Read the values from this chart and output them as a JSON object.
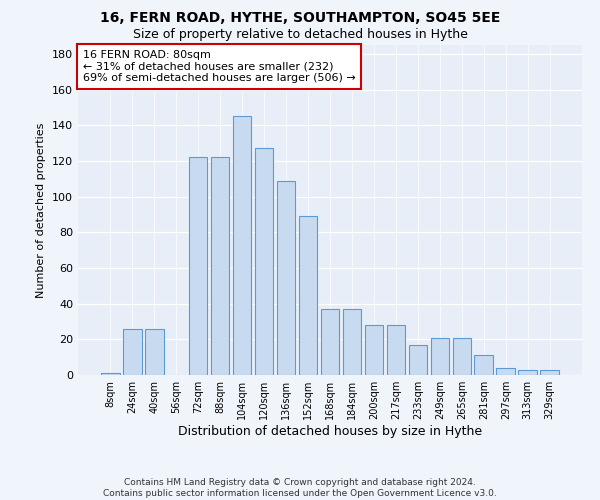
{
  "title": "16, FERN ROAD, HYTHE, SOUTHAMPTON, SO45 5EE",
  "subtitle": "Size of property relative to detached houses in Hythe",
  "xlabel": "Distribution of detached houses by size in Hythe",
  "ylabel": "Number of detached properties",
  "categories": [
    "8sqm",
    "24sqm",
    "40sqm",
    "56sqm",
    "72sqm",
    "88sqm",
    "104sqm",
    "120sqm",
    "136sqm",
    "152sqm",
    "168sqm",
    "184sqm",
    "200sqm",
    "217sqm",
    "233sqm",
    "249sqm",
    "265sqm",
    "281sqm",
    "297sqm",
    "313sqm",
    "329sqm"
  ],
  "heights": [
    1,
    26,
    26,
    0,
    122,
    122,
    145,
    127,
    109,
    89,
    37,
    37,
    28,
    28,
    17,
    21,
    21,
    11,
    4,
    3,
    3
  ],
  "bar_color": "#c8daef",
  "bar_edge_color": "#5b9bd5",
  "annotation_line1": "16 FERN ROAD: 80sqm",
  "annotation_line2": "← 31% of detached houses are smaller (232)",
  "annotation_line3": "69% of semi-detached houses are larger (506) →",
  "annotation_border_color": "#cc0000",
  "ylim": [
    0,
    185
  ],
  "yticks": [
    0,
    20,
    40,
    60,
    80,
    100,
    120,
    140,
    160,
    180
  ],
  "bg_color": "#f0f4fb",
  "plot_bg_color": "#e8eef8",
  "grid_color": "#ffffff",
  "footer": "Contains HM Land Registry data © Crown copyright and database right 2024.\nContains public sector information licensed under the Open Government Licence v3.0."
}
